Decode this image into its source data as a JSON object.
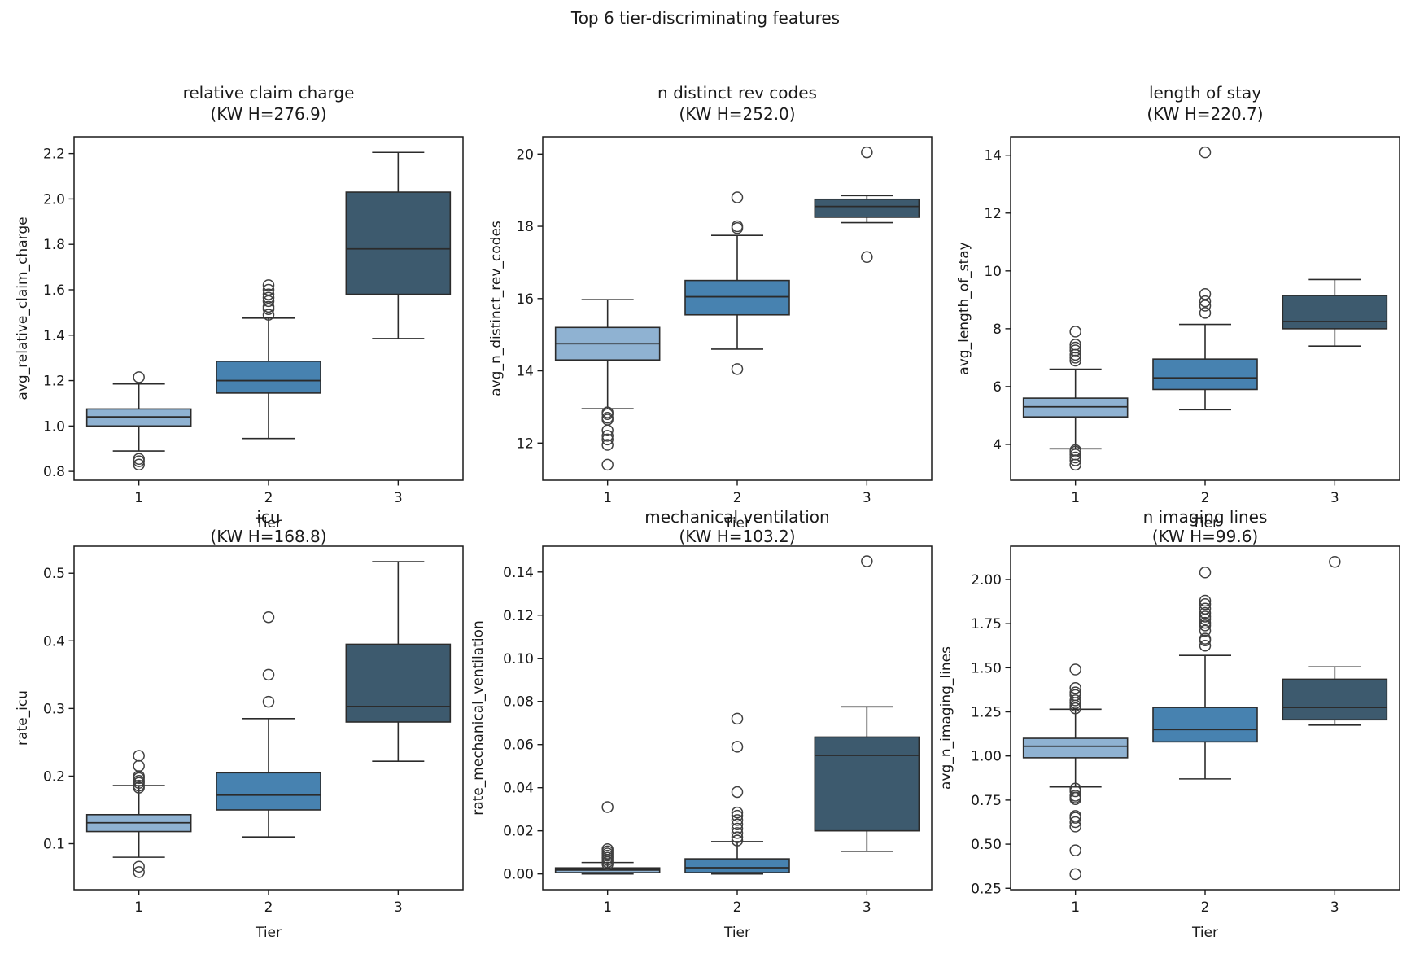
{
  "suptitle": "Top 6 tier-discriminating features",
  "palette": {
    "tier1_fill": "#8fb2d2",
    "tier2_fill": "#4782b0",
    "tier3_fill": "#3d5a6e",
    "box_edge": "#2b2b2b",
    "spine": "#1a1a1a",
    "outlier_edge": "#404040"
  },
  "chart_data": [
    {
      "type": "box",
      "key": "relative-claim-charge",
      "title": "relative claim charge",
      "subtitle": "(KW H=276.9)",
      "kw_h": 276.9,
      "ylabel": "avg_relative_claim_charge",
      "xlabel": "Tier",
      "categories": [
        "1",
        "2",
        "3"
      ],
      "ylim": [
        0.761,
        2.274
      ],
      "ytick_values": [
        0.8,
        1.0,
        1.2,
        1.4,
        1.6,
        1.8,
        2.0,
        2.2
      ],
      "ytick_labels": [
        "0.8",
        "1.0",
        "1.2",
        "1.4",
        "1.6",
        "1.8",
        "2.0",
        "2.2"
      ],
      "boxes": [
        {
          "category": "1",
          "whislo": 0.89,
          "q1": 1.0,
          "med": 1.04,
          "q3": 1.075,
          "whishi": 1.185,
          "outliers": [
            1.215,
            0.855,
            0.845,
            0.83
          ]
        },
        {
          "category": "2",
          "whislo": 0.945,
          "q1": 1.145,
          "med": 1.2,
          "q3": 1.285,
          "whishi": 1.475,
          "outliers": [
            1.49,
            1.515,
            1.525,
            1.55,
            1.565,
            1.58,
            1.6,
            1.62
          ]
        },
        {
          "category": "3",
          "whislo": 1.385,
          "q1": 1.58,
          "med": 1.78,
          "q3": 2.03,
          "whishi": 2.205,
          "outliers": []
        }
      ]
    },
    {
      "type": "box",
      "key": "n-distinct-rev-codes",
      "title": "n distinct rev codes",
      "subtitle": "(KW H=252.0)",
      "kw_h": 252.0,
      "ylabel": "avg_n_distinct_rev_codes",
      "xlabel": "Tier",
      "categories": [
        "1",
        "2",
        "3"
      ],
      "ylim": [
        10.97,
        20.48
      ],
      "ytick_values": [
        12,
        14,
        16,
        18,
        20
      ],
      "ytick_labels": [
        "12",
        "14",
        "16",
        "18",
        "20"
      ],
      "boxes": [
        {
          "category": "1",
          "whislo": 12.95,
          "q1": 14.3,
          "med": 14.75,
          "q3": 15.2,
          "whishi": 15.97,
          "outliers": [
            12.85,
            12.8,
            12.7,
            12.65,
            12.35,
            12.2,
            12.1,
            11.95,
            11.4
          ]
        },
        {
          "category": "2",
          "whislo": 14.6,
          "q1": 15.55,
          "med": 16.05,
          "q3": 16.5,
          "whishi": 17.75,
          "outliers": [
            18.8,
            18.0,
            17.95,
            14.05
          ]
        },
        {
          "category": "3",
          "whislo": 18.1,
          "q1": 18.25,
          "med": 18.55,
          "q3": 18.75,
          "whishi": 18.85,
          "outliers": [
            20.05,
            17.15
          ]
        }
      ]
    },
    {
      "type": "box",
      "key": "length-of-stay",
      "title": "length of stay",
      "subtitle": "(KW H=220.7)",
      "kw_h": 220.7,
      "ylabel": "avg_length_of_stay",
      "xlabel": "Tier",
      "categories": [
        "1",
        "2",
        "3"
      ],
      "ylim": [
        2.76,
        14.64
      ],
      "ytick_values": [
        4,
        6,
        8,
        10,
        12,
        14
      ],
      "ytick_labels": [
        "4",
        "6",
        "8",
        "10",
        "12",
        "14"
      ],
      "boxes": [
        {
          "category": "1",
          "whislo": 3.85,
          "q1": 4.95,
          "med": 5.3,
          "q3": 5.6,
          "whishi": 6.6,
          "outliers": [
            6.9,
            7.0,
            7.1,
            7.25,
            7.35,
            7.45,
            7.9,
            3.8,
            3.75,
            3.65,
            3.55,
            3.45,
            3.3
          ]
        },
        {
          "category": "2",
          "whislo": 5.2,
          "q1": 5.9,
          "med": 6.3,
          "q3": 6.95,
          "whishi": 8.15,
          "outliers": [
            8.55,
            8.8,
            8.95,
            9.2,
            14.1
          ]
        },
        {
          "category": "3",
          "whislo": 7.4,
          "q1": 8.0,
          "med": 8.25,
          "q3": 9.15,
          "whishi": 9.7,
          "outliers": []
        }
      ]
    },
    {
      "type": "box",
      "key": "icu",
      "title": "icu",
      "subtitle": "(KW H=168.8)",
      "kw_h": 168.8,
      "ylabel": "rate_icu",
      "xlabel": "Tier",
      "categories": [
        "1",
        "2",
        "3"
      ],
      "ylim": [
        0.032,
        0.54
      ],
      "ytick_values": [
        0.1,
        0.2,
        0.3,
        0.4,
        0.5
      ],
      "ytick_labels": [
        "0.1",
        "0.2",
        "0.3",
        "0.4",
        "0.5"
      ],
      "boxes": [
        {
          "category": "1",
          "whislo": 0.08,
          "q1": 0.118,
          "med": 0.131,
          "q3": 0.143,
          "whishi": 0.186,
          "outliers": [
            0.23,
            0.215,
            0.2,
            0.197,
            0.193,
            0.19,
            0.186,
            0.183,
            0.066,
            0.058
          ]
        },
        {
          "category": "2",
          "whislo": 0.11,
          "q1": 0.15,
          "med": 0.172,
          "q3": 0.205,
          "whishi": 0.285,
          "outliers": [
            0.31,
            0.35,
            0.435
          ]
        },
        {
          "category": "3",
          "whislo": 0.222,
          "q1": 0.28,
          "med": 0.303,
          "q3": 0.395,
          "whishi": 0.517,
          "outliers": []
        }
      ]
    },
    {
      "type": "box",
      "key": "mechanical-ventilation",
      "title": "mechanical ventilation",
      "subtitle": "(KW H=103.2)",
      "kw_h": 103.2,
      "ylabel": "rate_mechanical_ventilation",
      "xlabel": "Tier",
      "categories": [
        "1",
        "2",
        "3"
      ],
      "ylim": [
        -0.0073,
        0.152
      ],
      "ytick_values": [
        0.0,
        0.02,
        0.04,
        0.06,
        0.08,
        0.1,
        0.12,
        0.14
      ],
      "ytick_labels": [
        "0.00",
        "0.02",
        "0.04",
        "0.06",
        "0.08",
        "0.10",
        "0.12",
        "0.14"
      ],
      "boxes": [
        {
          "category": "1",
          "whislo": 0.0,
          "q1": 0.0006,
          "med": 0.0018,
          "q3": 0.0028,
          "whishi": 0.0053,
          "outliers": [
            0.031,
            0.0115,
            0.0105,
            0.0095,
            0.0085,
            0.0075,
            0.0065,
            0.0055,
            0.0045
          ]
        },
        {
          "category": "2",
          "whislo": 0.0,
          "q1": 0.0006,
          "med": 0.0029,
          "q3": 0.007,
          "whishi": 0.015,
          "outliers": [
            0.072,
            0.059,
            0.038,
            0.0285,
            0.027,
            0.025,
            0.023,
            0.021,
            0.019,
            0.017,
            0.0155
          ]
        },
        {
          "category": "3",
          "whislo": 0.0105,
          "q1": 0.02,
          "med": 0.055,
          "q3": 0.0635,
          "whishi": 0.0775,
          "outliers": [
            0.145
          ]
        }
      ]
    },
    {
      "type": "box",
      "key": "n-imaging-lines",
      "title": "n imaging lines",
      "subtitle": "(KW H=99.6)",
      "kw_h": 99.6,
      "ylabel": "avg_n_imaging_lines",
      "xlabel": "Tier",
      "categories": [
        "1",
        "2",
        "3"
      ],
      "ylim": [
        0.242,
        2.189
      ],
      "ytick_values": [
        0.25,
        0.5,
        0.75,
        1.0,
        1.25,
        1.5,
        1.75,
        2.0
      ],
      "ytick_labels": [
        "0.25",
        "0.50",
        "0.75",
        "1.00",
        "1.25",
        "1.50",
        "1.75",
        "2.00"
      ],
      "boxes": [
        {
          "category": "1",
          "whislo": 0.825,
          "q1": 0.99,
          "med": 1.055,
          "q3": 1.1,
          "whishi": 1.265,
          "outliers": [
            1.49,
            1.385,
            1.36,
            1.345,
            1.315,
            1.3,
            1.285,
            1.27,
            0.815,
            0.8,
            0.775,
            0.765,
            0.755,
            0.66,
            0.65,
            0.625,
            0.6,
            0.465,
            0.33
          ]
        },
        {
          "category": "2",
          "whislo": 0.87,
          "q1": 1.08,
          "med": 1.15,
          "q3": 1.275,
          "whishi": 1.57,
          "outliers": [
            2.04,
            1.88,
            1.86,
            1.835,
            1.81,
            1.79,
            1.775,
            1.755,
            1.74,
            1.71,
            1.665,
            1.655,
            1.625
          ]
        },
        {
          "category": "3",
          "whislo": 1.175,
          "q1": 1.205,
          "med": 1.275,
          "q3": 1.435,
          "whishi": 1.505,
          "outliers": [
            2.1
          ]
        }
      ]
    }
  ]
}
